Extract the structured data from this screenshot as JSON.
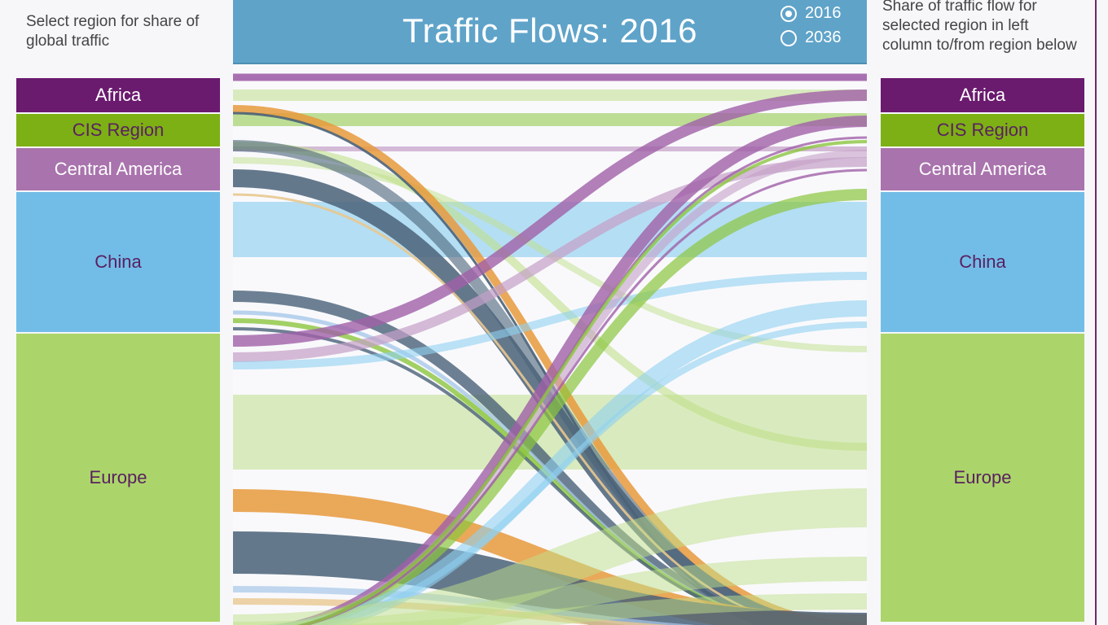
{
  "left_panel": {
    "caption": "Select region for share of global traffic",
    "regions": [
      {
        "label": "Africa",
        "color": "#6a1b6e",
        "text_color": "#ffffff"
      },
      {
        "label": "CIS Region",
        "color": "#7db014",
        "text_color": "#5a2060"
      },
      {
        "label": "Central America",
        "color": "#a973ad",
        "text_color": "#ffffff"
      },
      {
        "label": "China",
        "color": "#72bde8",
        "text_color": "#5a2060"
      },
      {
        "label": "Europe",
        "color": "#abd56a",
        "text_color": "#5a2060"
      }
    ]
  },
  "header": {
    "title": "Traffic Flows: 2016",
    "year_options": [
      {
        "label": "2016",
        "selected": true
      },
      {
        "label": "2036",
        "selected": false
      }
    ]
  },
  "right_panel": {
    "caption": "Share of traffic flow for selected region in left column to/from region below",
    "regions": [
      {
        "label": "Africa",
        "color": "#6a1b6e",
        "text_color": "#ffffff"
      },
      {
        "label": "CIS Region",
        "color": "#7db014",
        "text_color": "#5a2060"
      },
      {
        "label": "Central America",
        "color": "#a973ad",
        "text_color": "#ffffff"
      },
      {
        "label": "China",
        "color": "#72bde8",
        "text_color": "#5a2060"
      },
      {
        "label": "Europe",
        "color": "#abd56a",
        "text_color": "#5a2060"
      }
    ]
  },
  "chart_data": {
    "type": "sankey",
    "year": "2016",
    "nodes": [
      "Africa",
      "CIS Region",
      "Central America",
      "China",
      "Europe"
    ],
    "colors": {
      "Africa": "#a060a8",
      "CIS Region": "#8cc63f",
      "Central America": "#c4a0c8",
      "China": "#8fd0f0",
      "Europe": "#bfe08a",
      "Other (orange)": "#e89a3c",
      "Other (slate)": "#4a6278",
      "Other (light blue)": "#a8c8e8",
      "Other (tan)": "#e8c890"
    }
  }
}
